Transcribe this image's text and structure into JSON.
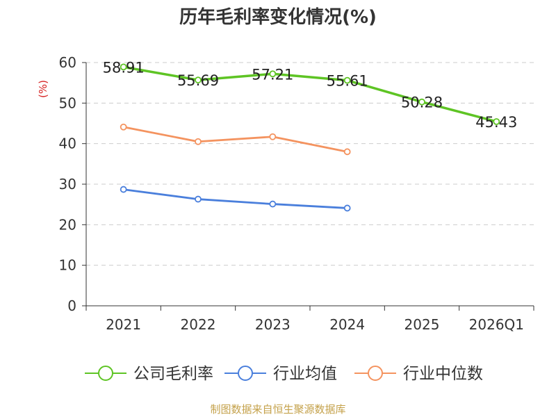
{
  "chart_data": {
    "type": "line",
    "title": "历年毛利率变化情况(%)",
    "ylabel": "(%)",
    "xlabel": "",
    "ylim": [
      0,
      60
    ],
    "yticks": [
      0,
      10,
      20,
      30,
      40,
      50,
      60
    ],
    "grid": true,
    "legend_position": "bottom-center",
    "categories": [
      "2021",
      "2022",
      "2023",
      "2024",
      "2025",
      "2026Q1"
    ],
    "series": [
      {
        "name": "公司毛利率",
        "color": "#5ec424",
        "values": [
          58.91,
          55.69,
          57.21,
          55.61,
          50.28,
          45.43
        ],
        "labels": [
          "58.91",
          "55.69",
          "57.21",
          "55.61",
          "50.28",
          "45.43"
        ]
      },
      {
        "name": "行业均值",
        "color": "#4a7fdc",
        "values": [
          28.7,
          26.3,
          25.1,
          24.1,
          null,
          null
        ]
      },
      {
        "name": "行业中位数",
        "color": "#f4935f",
        "values": [
          44.1,
          40.5,
          41.7,
          38.0,
          null,
          null
        ]
      }
    ]
  },
  "colors": {
    "axis": "#333333",
    "grid": "#cccccc",
    "ylabel": "#d62020",
    "source": "#c4a14a"
  },
  "source": "制图数据来自恒生聚源数据库"
}
